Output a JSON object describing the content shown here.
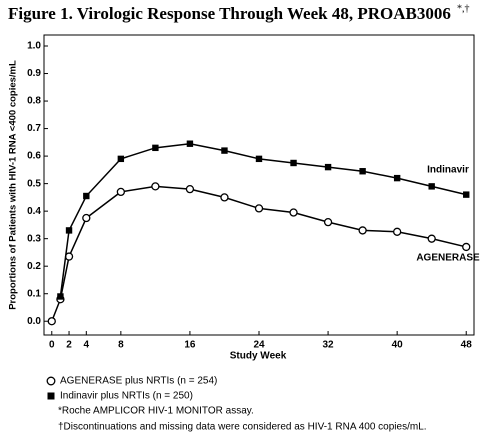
{
  "chart_data": {
    "type": "line",
    "title": "Figure 1. Virologic Response Through Week 48, PROAB3006",
    "title_superscript": "*,†",
    "x_label": "Study Week",
    "y_label": "Proportions of Patients with HIV-1 RNA <400 copies/mL",
    "x": [
      0,
      1,
      2,
      4,
      8,
      12,
      16,
      20,
      24,
      28,
      32,
      36,
      40,
      44,
      48
    ],
    "series": [
      {
        "name": "AGENERASE plus NRTIs (n = 254)",
        "color": "#000000",
        "marker": "circle",
        "values": [
          0.0,
          0.08,
          0.235,
          0.375,
          0.47,
          0.49,
          0.48,
          0.45,
          0.41,
          0.395,
          0.36,
          0.33,
          0.325,
          0.3,
          0.27
        ]
      },
      {
        "name": "Indinavir plus NRTIs (n = 250)",
        "color": "#000000",
        "marker": "square",
        "values": [
          null,
          0.09,
          0.33,
          0.455,
          0.59,
          0.63,
          0.645,
          0.62,
          0.59,
          0.575,
          0.56,
          0.545,
          0.52,
          0.49,
          0.46
        ]
      }
    ],
    "annotations": [
      "AGENERASE",
      "Indinavir"
    ],
    "xlim": [
      -0.9,
      48.9
    ],
    "ylim": [
      -0.05,
      1.04
    ],
    "xticks": [
      0,
      2,
      4,
      8,
      16,
      24,
      32,
      40,
      48
    ],
    "yticks": [
      {
        "value": 0,
        "label": "0.0"
      },
      0.1,
      0.2,
      0.3,
      0.4,
      0.5,
      0.6,
      0.7,
      0.8,
      0.9,
      {
        "value": 1,
        "label": "1.0"
      }
    ],
    "footnotes": [
      "*Roche AMPLICOR HIV-1 MONITOR assay.",
      "†Discontinuations and missing data were considered as HIV-1 RNA  400 copies/mL."
    ]
  }
}
